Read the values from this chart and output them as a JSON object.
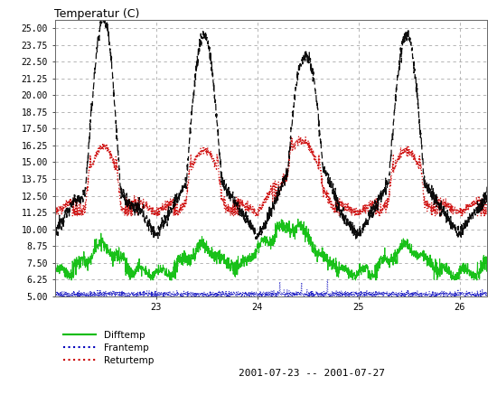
{
  "title": "Temperatur (C)",
  "date_label": "2001-07-23 -- 2001-07-27",
  "x_ticks": [
    1,
    2,
    3,
    4
  ],
  "x_tick_labels": [
    "23",
    "24",
    "25",
    "26"
  ],
  "ylim": [
    5.0,
    25.625
  ],
  "xlim": [
    0,
    4.27
  ],
  "yticks": [
    5.0,
    6.25,
    7.5,
    8.75,
    10.0,
    11.25,
    12.5,
    13.75,
    15.0,
    16.25,
    17.5,
    18.75,
    20.0,
    21.25,
    22.5,
    23.75,
    25.0
  ],
  "line_colors": {
    "difftemp": "#00bb00",
    "frantemp": "#0000bb",
    "returtemp": "#cc0000"
  },
  "background_color": "#ffffff",
  "grid_color": "#aaaaaa",
  "n_points": 2000
}
